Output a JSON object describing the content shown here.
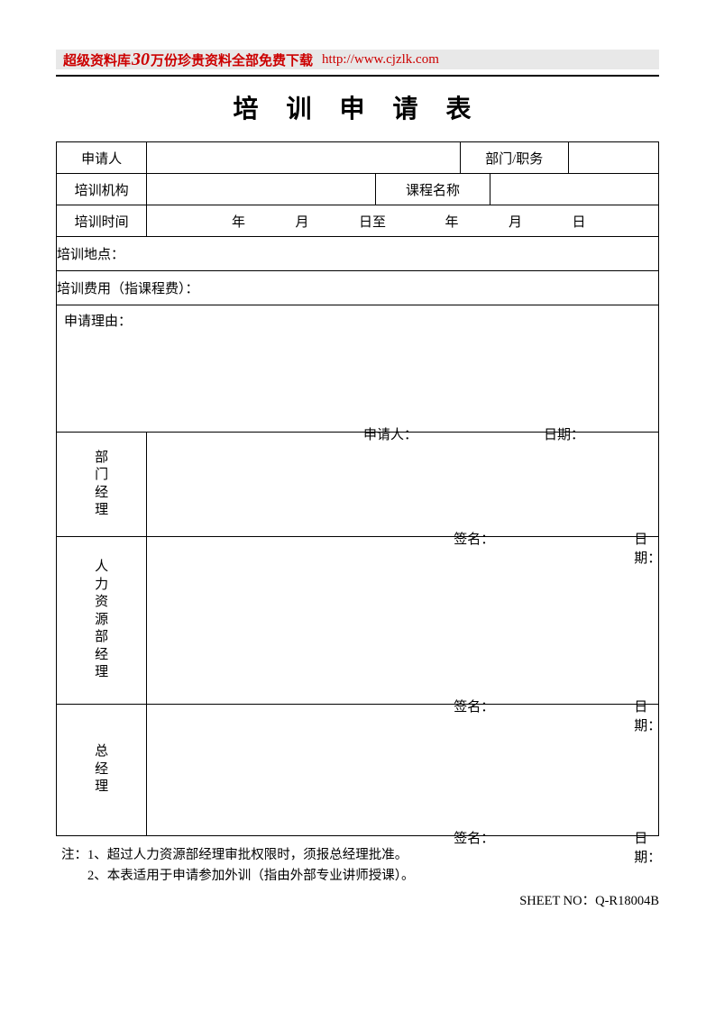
{
  "banner": {
    "prefix": "超级资料库",
    "big": "30",
    "suffix": "万份珍贵资料全部免费下载",
    "url": "http://www.cjzlk.com"
  },
  "title": "培 训 申 请 表",
  "labels": {
    "applicant": "申请人",
    "dept_title": "部门/职务",
    "org": "培训机构",
    "course": "课程名称",
    "time": "培训时间",
    "year": "年",
    "month": "月",
    "day_to": "日至",
    "day": "日",
    "location": "培训地点：",
    "fee": "培训费用（指课程费）：",
    "reason": "申请理由：",
    "sig_applicant": "申请人：",
    "sig_name": "签名：",
    "sig_date": "日期：",
    "dept_mgr": "部门经理",
    "hr_mgr": "人力资源部经理",
    "gm": "总经理"
  },
  "notes": {
    "prefix": "注：",
    "n1": "1、超过人力资源部经理审批权限时，须报总经理批准。",
    "n2": "2、本表适用于申请参加外训（指由外部专业讲师授课）。"
  },
  "sheet_no": "SHEET NO：Q-R18004B",
  "heights": {
    "dept_mgr": 115,
    "hr_mgr": 185,
    "gm": 145
  }
}
